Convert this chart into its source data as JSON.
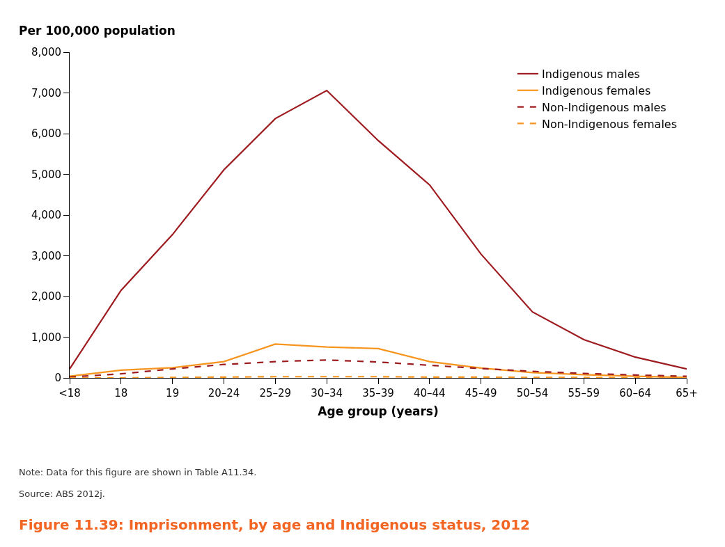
{
  "chart_data": {
    "type": "line",
    "title": "Figure 11.39: Imprisonment, by age and Indigenous status, 2012",
    "ylabel": "Per 100,000 population",
    "xlabel": "Age group (years)",
    "categories": [
      "<18",
      "18",
      "19",
      "20–24",
      "25–29",
      "30–34",
      "35–39",
      "40–44",
      "45–49",
      "50–54",
      "55–59",
      "60–64",
      "65+"
    ],
    "series": [
      {
        "name": "Indigenous males",
        "color": "#9e1b20",
        "line_style": "solid",
        "values": [
          220,
          2150,
          3520,
          5110,
          6370,
          7060,
          5830,
          4740,
          3040,
          1620,
          940,
          510,
          220
        ]
      },
      {
        "name": "Indigenous females",
        "color": "#f7941d",
        "line_style": "solid",
        "values": [
          40,
          190,
          250,
          400,
          830,
          760,
          720,
          400,
          240,
          130,
          80,
          40,
          10
        ]
      },
      {
        "name": "Non-Indigenous males",
        "color": "#9e1b20",
        "line_style": "dashed",
        "values": [
          20,
          100,
          220,
          330,
          400,
          440,
          390,
          310,
          230,
          160,
          110,
          70,
          40
        ]
      },
      {
        "name": "Non-Indigenous females",
        "color": "#f7941d",
        "line_style": "dashed",
        "values": [
          0,
          0,
          10,
          20,
          30,
          30,
          30,
          20,
          20,
          10,
          10,
          0,
          0
        ]
      }
    ],
    "ylim": [
      0,
      8000
    ],
    "yticks": [
      {
        "value": 0,
        "label": "0"
      },
      {
        "value": 1000,
        "label": "1,000"
      },
      {
        "value": 2000,
        "label": "2,000"
      },
      {
        "value": 3000,
        "label": "3,000"
      },
      {
        "value": 4000,
        "label": "4,000"
      },
      {
        "value": 5000,
        "label": "5,000"
      },
      {
        "value": 6000,
        "label": "6,000"
      },
      {
        "value": 7000,
        "label": "7,000"
      },
      {
        "value": 8000,
        "label": "8,000"
      }
    ],
    "grid": false,
    "legend": "top right",
    "marker": "none",
    "annotations": [
      "Note: Data for this figure are shown in Table A11.34.",
      "Source: ABS 2012j."
    ]
  }
}
